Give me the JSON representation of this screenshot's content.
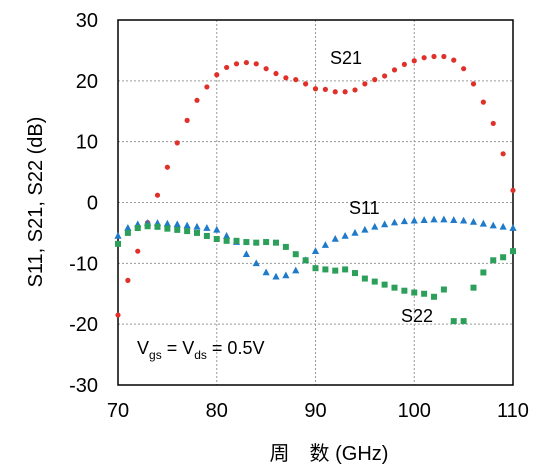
{
  "chart_data": {
    "type": "scatter",
    "xlabel": "周　数 (GHz)",
    "ylabel": "S11, S21, S22 (dB)",
    "xlim": [
      70,
      110
    ],
    "ylim": [
      -30,
      30
    ],
    "xticks": [
      "70",
      "80",
      "90",
      "100",
      "110"
    ],
    "yticks": [
      "30",
      "20",
      "10",
      "0",
      "-10",
      "-20",
      "-30"
    ],
    "grid": "dotted",
    "annotation": "Vgs = Vds = 0.5V",
    "series": [
      {
        "name": "S21",
        "marker": "circle",
        "color": "#e0302a",
        "x": [
          70,
          71,
          72,
          73,
          74,
          75,
          76,
          77,
          78,
          79,
          80,
          81,
          82,
          83,
          84,
          85,
          86,
          87,
          88,
          89,
          90,
          91,
          92,
          93,
          94,
          95,
          96,
          97,
          98,
          99,
          100,
          101,
          102,
          103,
          104,
          105,
          106,
          107,
          108,
          109,
          110
        ],
        "y": [
          -18.5,
          -12.8,
          -8.0,
          -3.3,
          1.2,
          5.8,
          9.8,
          13.5,
          16.8,
          19.0,
          21.0,
          22.2,
          22.8,
          23.0,
          22.8,
          22.0,
          21.2,
          20.5,
          20.2,
          19.5,
          18.7,
          18.6,
          18.2,
          18.2,
          18.5,
          19.5,
          20.2,
          20.8,
          21.8,
          22.7,
          23.3,
          23.8,
          24.0,
          24.0,
          23.4,
          22.0,
          19.5,
          16.5,
          13.0,
          8.0,
          2.0
        ]
      },
      {
        "name": "S11",
        "marker": "triangle",
        "color": "#1f7ac9",
        "x": [
          70,
          71,
          72,
          73,
          74,
          75,
          76,
          77,
          78,
          79,
          80,
          81,
          82,
          83,
          84,
          85,
          86,
          87,
          88,
          89,
          90,
          91,
          92,
          93,
          94,
          95,
          96,
          97,
          98,
          99,
          100,
          101,
          102,
          103,
          104,
          105,
          106,
          107,
          108,
          109,
          110
        ],
        "y": [
          -5.5,
          -4.2,
          -3.6,
          -3.4,
          -3.4,
          -3.5,
          -3.6,
          -3.8,
          -4.0,
          -4.2,
          -4.5,
          -5.5,
          -6.5,
          -8.5,
          -10.0,
          -11.5,
          -12.2,
          -12.0,
          -11.2,
          -9.5,
          -8.0,
          -7.0,
          -6.0,
          -5.5,
          -5.0,
          -4.5,
          -4.0,
          -3.6,
          -3.3,
          -3.1,
          -3.0,
          -2.9,
          -2.8,
          -2.8,
          -2.9,
          -3.0,
          -3.2,
          -3.5,
          -3.8,
          -4.0,
          -4.2
        ]
      },
      {
        "name": "S22",
        "marker": "square",
        "color": "#2ca05a",
        "x": [
          70,
          71,
          72,
          73,
          74,
          75,
          76,
          77,
          78,
          79,
          80,
          81,
          82,
          83,
          84,
          85,
          86,
          87,
          88,
          89,
          90,
          91,
          92,
          93,
          94,
          95,
          96,
          97,
          98,
          99,
          100,
          101,
          102,
          103,
          104,
          105,
          106,
          107,
          108,
          109,
          110
        ],
        "y": [
          -6.8,
          -5.0,
          -4.2,
          -3.9,
          -4.0,
          -4.3,
          -4.5,
          -4.7,
          -5.0,
          -5.5,
          -6.0,
          -6.3,
          -6.3,
          -6.5,
          -6.6,
          -6.5,
          -6.6,
          -7.3,
          -8.5,
          -9.5,
          -10.8,
          -11.0,
          -11.2,
          -11.0,
          -11.6,
          -12.5,
          -13.0,
          -13.5,
          -14.0,
          -14.5,
          -14.8,
          -15.0,
          -15.5,
          -14.3,
          -19.5,
          -19.5,
          -14.0,
          -11.5,
          -9.5,
          -9.0,
          -8.0
        ]
      }
    ]
  }
}
